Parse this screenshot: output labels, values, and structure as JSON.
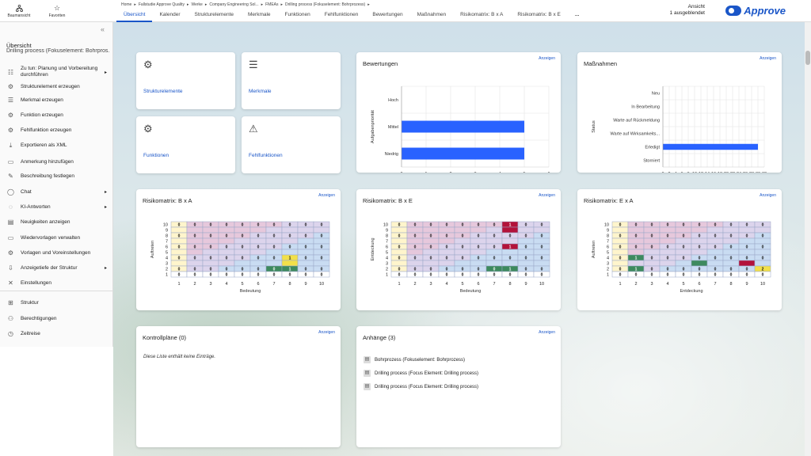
{
  "quick_nav": [
    {
      "label": "Baumansicht",
      "icon": "tree-icon"
    },
    {
      "label": "Favoriten",
      "icon": "star-icon"
    }
  ],
  "breadcrumb": [
    "Home",
    "Fallstudie Approve Quality",
    "Werke",
    "Company Engineering Sol...",
    "FMEAs",
    "Drilling process (Fokuselement: Bohrprozess)"
  ],
  "tabs": [
    "Übersicht",
    "Kalender",
    "Strukturelemente",
    "Merkmale",
    "Funktionen",
    "Fehlfunktionen",
    "Bewertungen",
    "Maßnahmen",
    "Risikomatrix: B x A",
    "Risikomatrix: B x E",
    "..."
  ],
  "view": {
    "label": "Ansicht",
    "hidden": "1 ausgeblendet"
  },
  "logo": {
    "text": "Approve",
    "color": "#1a56c8"
  },
  "sidebar": {
    "title": "Übersicht",
    "subtitle": "Drilling process (Fokuselement: Bohrpros...",
    "items": [
      {
        "label": "Zu tun: Planung und Vorbereitung",
        "label2": "durchführen",
        "icon": "checklist-icon",
        "arrow": true
      },
      {
        "label": "Strukturelement erzeugen",
        "icon": "gear-icon"
      },
      {
        "label": "Merkmal erzeugen",
        "icon": "list-icon"
      },
      {
        "label": "Funktion erzeugen",
        "icon": "function-gear-icon"
      },
      {
        "label": "Fehlfunktion erzeugen",
        "icon": "malfunction-icon"
      },
      {
        "label": "Exportieren als XML",
        "icon": "download-icon"
      },
      {
        "label": "Anmerkung hinzufügen",
        "icon": "comment-icon"
      },
      {
        "label": "Beschreibung festlegen",
        "icon": "edit-icon"
      },
      {
        "label": "Chat",
        "icon": "chat-icon",
        "arrow": true
      },
      {
        "label": "KI-Antworten",
        "icon": "ai-icon",
        "arrow": true
      },
      {
        "label": "Neuigkeiten anzeigen",
        "icon": "news-icon"
      },
      {
        "label": "Wiedervorlagen verwalten",
        "icon": "resubmission-icon"
      },
      {
        "label": "Vorlagen und Voreinstellungen",
        "icon": "template-gear-icon"
      },
      {
        "label": "Anzeigetiefe der Struktur",
        "icon": "depth-icon",
        "arrow": true
      },
      {
        "label": "Einstellungen",
        "icon": "settings-icon"
      },
      {
        "label": "Struktur",
        "icon": "structure-icon"
      },
      {
        "label": "Berechtigungen",
        "icon": "permissions-icon"
      },
      {
        "label": "Zeitreise",
        "icon": "history-icon"
      }
    ]
  },
  "tiles": [
    {
      "label": "Strukturelemente",
      "icon": "gear-icon"
    },
    {
      "label": "Merkmale",
      "icon": "list-icon"
    },
    {
      "label": "Funktionen",
      "icon": "gears-icon"
    },
    {
      "label": "Fehlfunktionen",
      "icon": "warning-gear-icon"
    }
  ],
  "link_label": "Anzeigen",
  "bewertungen": {
    "title": "Bewertungen",
    "ylabel": "Aufgabenpriorität",
    "chart_data": {
      "type": "bar",
      "orientation": "horizontal",
      "categories": [
        "Hoch",
        "Mittel",
        "Niedrig"
      ],
      "values": [
        0,
        5,
        5
      ],
      "xlim": [
        0,
        6
      ],
      "xticks": [
        "0",
        "1",
        "2",
        "3",
        "4",
        "5",
        "6"
      ],
      "color": "#2962ff"
    }
  },
  "massnahmen": {
    "title": "Maßnahmen",
    "ylabel": "Status",
    "chart_data": {
      "type": "bar",
      "orientation": "horizontal",
      "categories": [
        "Neu",
        "In Bearbeitung",
        "Warte auf Rückmeldung",
        "Warte auf Wirksamkeits...",
        "Erledigt",
        "Storniert"
      ],
      "values": [
        0,
        0,
        0,
        0,
        30,
        0
      ],
      "xlim": [
        0,
        32
      ],
      "xticks": [
        "0",
        "2",
        "4",
        "6",
        "8",
        "10",
        "12",
        "14",
        "16",
        "18",
        "20",
        "22",
        "24",
        "26",
        "28",
        "30",
        "32"
      ],
      "color": "#2962ff"
    }
  },
  "matrices": [
    {
      "title": "Risikomatrix: B x A",
      "ylabel": "Auftreten",
      "xlabel": "Bedeutung",
      "rows": [
        "10",
        "9",
        "8",
        "7",
        "6",
        "5",
        "4",
        "3",
        "2",
        "1"
      ],
      "cols": [
        "1",
        "2",
        "3",
        "4",
        "5",
        "6",
        "7",
        "8",
        "9",
        "10"
      ],
      "values": [
        [
          "0",
          "0",
          "0",
          "0",
          "0",
          "0",
          "0",
          "0",
          "0",
          "0"
        ],
        [
          "",
          "",
          "",
          "",
          "",
          "",
          "",
          "",
          "",
          ""
        ],
        [
          "0",
          "0",
          "0",
          "0",
          "0",
          "0",
          "0",
          "0",
          "0",
          "0"
        ],
        [
          "",
          "",
          "",
          "",
          "",
          "",
          "",
          "",
          "",
          ""
        ],
        [
          "0",
          "0",
          "0",
          "0",
          "0",
          "0",
          "0",
          "0",
          "0",
          "0"
        ],
        [
          "",
          "",
          "",
          "",
          "",
          "",
          "",
          "",
          "",
          ""
        ],
        [
          "0",
          "0",
          "0",
          "0",
          "0",
          "0",
          "0",
          "1",
          "0",
          "0"
        ],
        [
          "",
          "",
          "",
          "",
          "",
          "",
          "",
          "",
          "",
          ""
        ],
        [
          "0",
          "0",
          "0",
          "0",
          "0",
          "0",
          "0",
          "1",
          "0",
          "0"
        ],
        [
          "0",
          "0",
          "0",
          "0",
          "0",
          "0",
          "0",
          "0",
          "0",
          "0"
        ]
      ],
      "highlights": [
        {
          "row": 6,
          "col": 7,
          "color": "#f2e04a"
        },
        {
          "row": 7,
          "col": 7,
          "color": "#f2e04a"
        },
        {
          "row": 8,
          "col": 6,
          "color": "#3d8a5e"
        },
        {
          "row": 8,
          "col": 7,
          "color": "#3d8a5e"
        }
      ]
    },
    {
      "title": "Risikomatrix: B x E",
      "ylabel": "Entdeckung",
      "xlabel": "Bedeutung",
      "rows": [
        "10",
        "9",
        "8",
        "7",
        "6",
        "5",
        "4",
        "3",
        "2",
        "1"
      ],
      "cols": [
        "1",
        "2",
        "3",
        "4",
        "5",
        "6",
        "7",
        "8",
        "9",
        "10"
      ],
      "values": [
        [
          "0",
          "0",
          "0",
          "0",
          "0",
          "0",
          "0",
          "1",
          "0",
          "0"
        ],
        [
          "",
          "",
          "",
          "",
          "",
          "",
          "",
          "",
          "",
          ""
        ],
        [
          "0",
          "0",
          "0",
          "0",
          "0",
          "0",
          "0",
          "0",
          "0",
          "0"
        ],
        [
          "",
          "",
          "",
          "",
          "",
          "",
          "",
          "",
          "",
          ""
        ],
        [
          "0",
          "0",
          "0",
          "0",
          "0",
          "0",
          "0",
          "1",
          "0",
          "0"
        ],
        [
          "",
          "",
          "",
          "",
          "",
          "",
          "",
          "",
          "",
          ""
        ],
        [
          "0",
          "0",
          "0",
          "0",
          "0",
          "0",
          "0",
          "0",
          "0",
          "0"
        ],
        [
          "",
          "",
          "",
          "",
          "",
          "",
          "",
          "",
          "",
          ""
        ],
        [
          "0",
          "0",
          "0",
          "0",
          "0",
          "0",
          "0",
          "1",
          "0",
          "0"
        ],
        [
          "0",
          "0",
          "0",
          "0",
          "0",
          "0",
          "0",
          "0",
          "0",
          "0"
        ]
      ],
      "highlights": [
        {
          "row": 0,
          "col": 7,
          "color": "#b3123a"
        },
        {
          "row": 1,
          "col": 7,
          "color": "#b3123a"
        },
        {
          "row": 4,
          "col": 7,
          "color": "#b3123a"
        },
        {
          "row": 8,
          "col": 6,
          "color": "#3d8a5e"
        },
        {
          "row": 8,
          "col": 7,
          "color": "#3d8a5e"
        }
      ]
    },
    {
      "title": "Risikomatrix: E x A",
      "ylabel": "Auftreten",
      "xlabel": "Entdeckung",
      "rows": [
        "10",
        "9",
        "8",
        "7",
        "6",
        "5",
        "4",
        "3",
        "2",
        "1"
      ],
      "cols": [
        "1",
        "2",
        "3",
        "4",
        "5",
        "6",
        "7",
        "8",
        "9",
        "10"
      ],
      "values": [
        [
          "0",
          "0",
          "0",
          "0",
          "0",
          "0",
          "0",
          "0",
          "0",
          "0"
        ],
        [
          "",
          "",
          "",
          "",
          "",
          "",
          "",
          "",
          "",
          ""
        ],
        [
          "0",
          "0",
          "0",
          "0",
          "0",
          "0",
          "0",
          "0",
          "0",
          "0"
        ],
        [
          "",
          "",
          "",
          "",
          "",
          "",
          "",
          "",
          "",
          ""
        ],
        [
          "0",
          "0",
          "0",
          "0",
          "0",
          "0",
          "0",
          "0",
          "0",
          "0"
        ],
        [
          "",
          "",
          "",
          "",
          "",
          "",
          "",
          "",
          "",
          ""
        ],
        [
          "0",
          "1",
          "0",
          "0",
          "0",
          "0",
          "0",
          "0",
          "0",
          "0"
        ],
        [
          "",
          "",
          "",
          "",
          "",
          "",
          "",
          "",
          "",
          ""
        ],
        [
          "0",
          "1",
          "0",
          "0",
          "0",
          "0",
          "0",
          "0",
          "0",
          "2"
        ],
        [
          "0",
          "0",
          "0",
          "0",
          "0",
          "0",
          "0",
          "0",
          "0",
          "0"
        ]
      ],
      "highlights": [
        {
          "row": 6,
          "col": 1,
          "color": "#3d8a5e"
        },
        {
          "row": 7,
          "col": 5,
          "color": "#3d8a5e"
        },
        {
          "row": 7,
          "col": 8,
          "color": "#b3123a"
        },
        {
          "row": 8,
          "col": 1,
          "color": "#3d8a5e"
        },
        {
          "row": 8,
          "col": 9,
          "color": "#f2e04a"
        }
      ]
    }
  ],
  "kontrollplaene": {
    "title": "Kontrollpläne (0)",
    "empty": "Diese Liste enthält keine Einträge."
  },
  "anhaenge": {
    "title": "Anhänge (3)",
    "items": [
      "Bohrprozess (Fokuselement: Bohrprozess)",
      "Drilling process (Focus Element: Drilling process)",
      "Drilling process (Focus Element: Drilling process)"
    ]
  }
}
